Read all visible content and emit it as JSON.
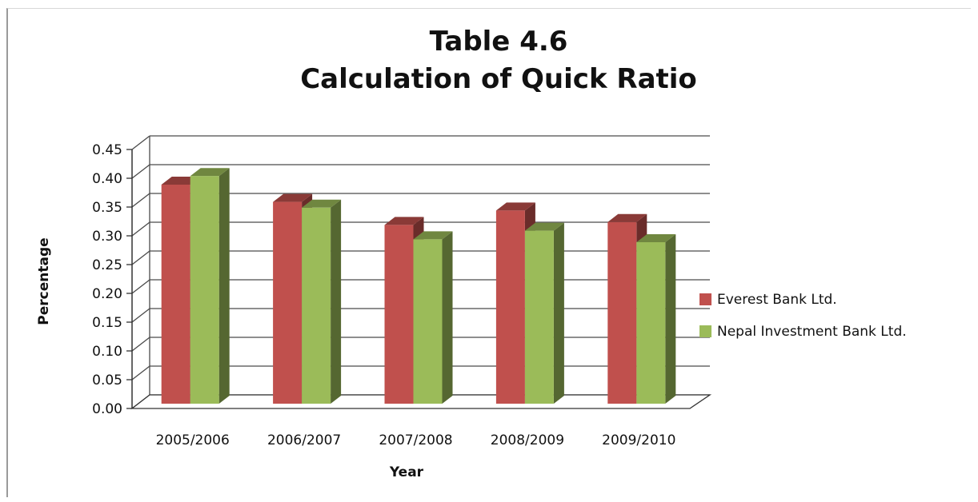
{
  "chart_data": {
    "type": "bar",
    "title": "Table 4.6",
    "subtitle": "Calculation of Quick Ratio",
    "xlabel": "Year",
    "ylabel": "Percentage",
    "ylim": [
      0,
      0.45
    ],
    "yticks": [
      "0.00",
      "0.05",
      "0.10",
      "0.15",
      "0.20",
      "0.25",
      "0.30",
      "0.35",
      "0.40",
      "0.45"
    ],
    "categories": [
      "2005/2006",
      "2006/2007",
      "2007/2008",
      "2008/2009",
      "2009/2010"
    ],
    "series": [
      {
        "name": "Everest Bank Ltd.",
        "values": [
          0.4,
          0.37,
          0.33,
          0.355,
          0.335
        ],
        "color": "#c0504d"
      },
      {
        "name": "Nepal Investment Bank Ltd.",
        "values": [
          0.415,
          0.36,
          0.305,
          0.32,
          0.3
        ],
        "color": "#9bbb59"
      }
    ],
    "grid": true,
    "legend": "right",
    "style": "3d-clustered-column"
  }
}
